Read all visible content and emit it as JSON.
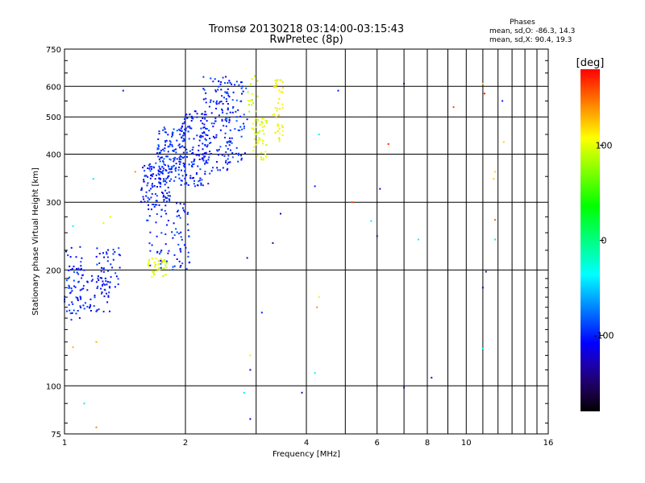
{
  "chart_data": {
    "type": "scatter",
    "title": "Tromsø 20130218 03:14:00-03:15:43",
    "subtitle": "RwPretec (8p)",
    "xlabel": "Frequency [MHz]",
    "ylabel": "Stationary phase Virtual Height [km]",
    "xscale": "log",
    "yscale": "log",
    "xlim": [
      1,
      16
    ],
    "ylim": [
      75,
      750
    ],
    "x_ticks": [
      1,
      2,
      4,
      6,
      8,
      10,
      16
    ],
    "x_minor_gridlines": [
      3,
      5,
      7,
      9,
      11,
      12,
      13,
      14,
      15
    ],
    "y_ticks": [
      75,
      100,
      200,
      300,
      400,
      500,
      600,
      750
    ],
    "y_minor_ticks": [
      80,
      90,
      110,
      120,
      130,
      140,
      150,
      160,
      170,
      180,
      190,
      225,
      250,
      275,
      350,
      450,
      550,
      650,
      700
    ],
    "grid": true,
    "legend_title": "Phases",
    "legend_lines": [
      "mean, sd,O: -86.3, 14.3",
      "mean, sd,X:  90.4, 19.3"
    ],
    "colorbar": {
      "label": "[deg]",
      "range": [
        -180,
        180
      ],
      "ticks": [
        100,
        0,
        -100
      ],
      "colors": [
        "#ff0000",
        "#ff8000",
        "#ffff00",
        "#00ff00",
        "#00ffff",
        "#0040ff",
        "#000000"
      ]
    },
    "clusters": [
      {
        "x_range": [
          1.0,
          1.12
        ],
        "y_range": [
          148,
          230
        ],
        "phase": -100,
        "n": 70
      },
      {
        "x_range": [
          1.12,
          1.3
        ],
        "y_range": [
          155,
          195
        ],
        "phase": -105,
        "n": 45
      },
      {
        "x_range": [
          1.2,
          1.38
        ],
        "y_range": [
          180,
          230
        ],
        "phase": -100,
        "n": 45
      },
      {
        "x_range": [
          1.55,
          1.85
        ],
        "y_range": [
          300,
          380
        ],
        "phase": -100,
        "n": 110
      },
      {
        "x_range": [
          1.7,
          2.0
        ],
        "y_range": [
          340,
          470
        ],
        "phase": -95,
        "n": 130
      },
      {
        "x_range": [
          1.95,
          2.3
        ],
        "y_range": [
          330,
          520
        ],
        "phase": -100,
        "n": 140
      },
      {
        "x_range": [
          2.2,
          2.6
        ],
        "y_range": [
          360,
          640
        ],
        "phase": -100,
        "n": 120
      },
      {
        "x_range": [
          2.5,
          2.85
        ],
        "y_range": [
          380,
          620
        ],
        "phase": -95,
        "n": 70
      },
      {
        "x_range": [
          1.6,
          2.05
        ],
        "y_range": [
          200,
          300
        ],
        "phase": -100,
        "n": 90
      },
      {
        "x_range": [
          1.6,
          1.8
        ],
        "y_range": [
          190,
          215
        ],
        "phase": 100,
        "n": 40
      },
      {
        "x_range": [
          2.95,
          3.2
        ],
        "y_range": [
          385,
          500
        ],
        "phase": 100,
        "n": 45
      },
      {
        "x_range": [
          3.3,
          3.5
        ],
        "y_range": [
          430,
          630
        ],
        "phase": 110,
        "n": 45
      },
      {
        "x_range": [
          2.85,
          3.05
        ],
        "y_range": [
          450,
          640
        ],
        "phase": 90,
        "n": 20
      }
    ],
    "points": [
      {
        "x": 1.12,
        "y": 90,
        "phase": -40
      },
      {
        "x": 1.05,
        "y": 126,
        "phase": 130
      },
      {
        "x": 1.2,
        "y": 130,
        "phase": 130
      },
      {
        "x": 1.2,
        "y": 78,
        "phase": 140
      },
      {
        "x": 1.18,
        "y": 345,
        "phase": -40
      },
      {
        "x": 1.3,
        "y": 275,
        "phase": 100
      },
      {
        "x": 1.4,
        "y": 585,
        "phase": -100
      },
      {
        "x": 1.5,
        "y": 360,
        "phase": 140
      },
      {
        "x": 2.9,
        "y": 120,
        "phase": 100
      },
      {
        "x": 2.9,
        "y": 110,
        "phase": -130
      },
      {
        "x": 2.85,
        "y": 215,
        "phase": -130
      },
      {
        "x": 2.9,
        "y": 82,
        "phase": -120
      },
      {
        "x": 2.8,
        "y": 96,
        "phase": -40
      },
      {
        "x": 3.1,
        "y": 155,
        "phase": -100
      },
      {
        "x": 3.45,
        "y": 280,
        "phase": -120
      },
      {
        "x": 3.3,
        "y": 235,
        "phase": -135
      },
      {
        "x": 3.9,
        "y": 96,
        "phase": -130
      },
      {
        "x": 4.2,
        "y": 330,
        "phase": -100
      },
      {
        "x": 4.3,
        "y": 450,
        "phase": -40
      },
      {
        "x": 4.25,
        "y": 160,
        "phase": 140
      },
      {
        "x": 4.3,
        "y": 170,
        "phase": 100
      },
      {
        "x": 4.2,
        "y": 108,
        "phase": -40
      },
      {
        "x": 4.8,
        "y": 585,
        "phase": -100
      },
      {
        "x": 5.2,
        "y": 300,
        "phase": 160
      },
      {
        "x": 5.8,
        "y": 268,
        "phase": -40
      },
      {
        "x": 6.0,
        "y": 245,
        "phase": -130
      },
      {
        "x": 6.1,
        "y": 325,
        "phase": -110
      },
      {
        "x": 6.4,
        "y": 425,
        "phase": 170
      },
      {
        "x": 7.0,
        "y": 610,
        "phase": -135
      },
      {
        "x": 7.0,
        "y": 99,
        "phase": -120
      },
      {
        "x": 7.6,
        "y": 240,
        "phase": -40
      },
      {
        "x": 8.2,
        "y": 105,
        "phase": -110
      },
      {
        "x": 9.3,
        "y": 530,
        "phase": 160
      },
      {
        "x": 11.0,
        "y": 610,
        "phase": 120
      },
      {
        "x": 11.1,
        "y": 575,
        "phase": 175
      },
      {
        "x": 11.2,
        "y": 198,
        "phase": -130
      },
      {
        "x": 11.0,
        "y": 180,
        "phase": -120
      },
      {
        "x": 11.0,
        "y": 125,
        "phase": -40
      },
      {
        "x": 11.8,
        "y": 240,
        "phase": -40
      },
      {
        "x": 11.8,
        "y": 270,
        "phase": 150
      },
      {
        "x": 11.7,
        "y": 345,
        "phase": 120
      },
      {
        "x": 11.8,
        "y": 360,
        "phase": 120
      },
      {
        "x": 12.3,
        "y": 550,
        "phase": -100
      },
      {
        "x": 12.4,
        "y": 430,
        "phase": 120
      },
      {
        "x": 1.05,
        "y": 260,
        "phase": -40
      },
      {
        "x": 1.25,
        "y": 265,
        "phase": 100
      }
    ]
  }
}
